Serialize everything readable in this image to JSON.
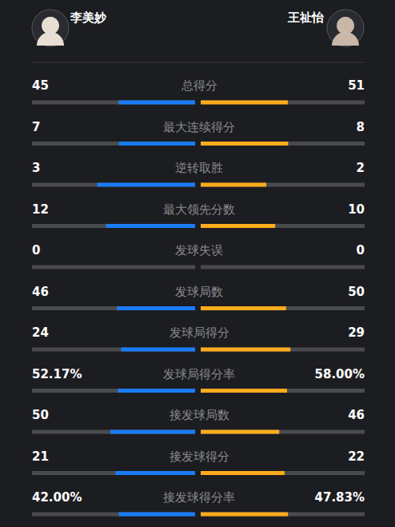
{
  "chart_data": {
    "type": "bar",
    "orientation": "horizontal",
    "categories": [
      "总得分",
      "最大连续得分",
      "逆转取胜",
      "最大领先分数",
      "发球失误",
      "发球局数",
      "发球局得分",
      "发球局得分率",
      "接发球局数",
      "接发球得分",
      "接发球得分率"
    ],
    "series": [
      {
        "name": "李美妙",
        "color": "#1a7cf5",
        "values": [
          45,
          7,
          3,
          12,
          0,
          46,
          24,
          52.17,
          50,
          21,
          42.0
        ],
        "value_labels": [
          "45",
          "7",
          "3",
          "12",
          "0",
          "46",
          "24",
          "52.17%",
          "50",
          "21",
          "42.00%"
        ]
      },
      {
        "name": "王祉怡",
        "color": "#ffac1c",
        "values": [
          51,
          8,
          2,
          10,
          0,
          50,
          29,
          58.0,
          46,
          22,
          47.83
        ],
        "value_labels": [
          "51",
          "8",
          "2",
          "10",
          "0",
          "50",
          "29",
          "58.00%",
          "46",
          "22",
          "47.83%"
        ]
      }
    ],
    "data_labels": true,
    "tick_labels": false,
    "grid": false
  }
}
